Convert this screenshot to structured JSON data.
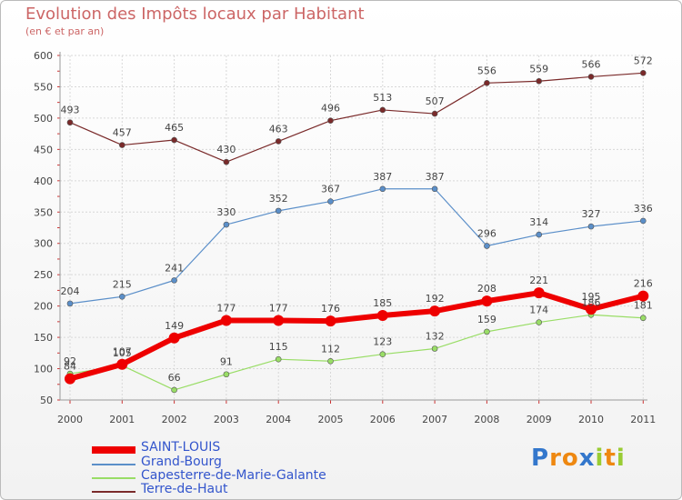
{
  "header": {
    "title": "Evolution des Impôts locaux par Habitant",
    "subtitle": "(en € et par an)"
  },
  "chart_data": {
    "type": "line",
    "title": "Evolution des Impôts locaux par Habitant",
    "subtitle": "(en € et par an)",
    "x": [
      "2000",
      "2001",
      "2002",
      "2003",
      "2004",
      "2005",
      "2006",
      "2007",
      "2008",
      "2009",
      "2010",
      "2011"
    ],
    "ylim": [
      50,
      600
    ],
    "yticks": [
      "50",
      "100",
      "150",
      "200",
      "250",
      "300",
      "350",
      "400",
      "450",
      "500",
      "550",
      "600"
    ],
    "grid": true,
    "legend_position": "bottom-left",
    "series": [
      {
        "name": "SAINT-LOUIS",
        "color": "#ee0000",
        "values": [
          84,
          107,
          149,
          177,
          177,
          176,
          185,
          192,
          208,
          221,
          195,
          216
        ],
        "labels": [
          "84",
          "107",
          "149",
          "177",
          "177",
          "176",
          "185",
          "192",
          "208",
          "221",
          "195",
          "216"
        ]
      },
      {
        "name": "Grand-Bourg",
        "color": "#5b8fc9",
        "values": [
          204,
          215,
          241,
          330,
          352,
          367,
          387,
          387,
          296,
          314,
          327,
          336
        ],
        "labels": [
          "204",
          "215",
          "241",
          "330",
          "352",
          "367",
          "387",
          "387",
          "296",
          "314",
          "327",
          "336"
        ]
      },
      {
        "name": "Capesterre-de-Marie-Galante",
        "color": "#99dd66",
        "values": [
          92,
          105,
          66,
          91,
          115,
          112,
          123,
          132,
          159,
          174,
          186,
          181
        ],
        "labels": [
          "92",
          "105",
          "66",
          "91",
          "115",
          "112",
          "123",
          "132",
          "159",
          "174",
          "186",
          "181"
        ]
      },
      {
        "name": "Terre-de-Haut",
        "color": "#7a2a2a",
        "values": [
          493,
          457,
          465,
          430,
          463,
          496,
          513,
          507,
          556,
          559,
          566,
          572
        ],
        "labels": [
          "493",
          "457",
          "465",
          "430",
          "463",
          "496",
          "513",
          "507",
          "556",
          "559",
          "566",
          "572"
        ]
      }
    ]
  },
  "logo": {
    "letters": [
      "P",
      "r",
      "o",
      "x",
      "i",
      "t",
      "i"
    ],
    "colors": [
      "#3377cc",
      "#ee8811",
      "#ee8811",
      "#3377cc",
      "#99cc33",
      "#ee8811",
      "#99cc33"
    ]
  }
}
